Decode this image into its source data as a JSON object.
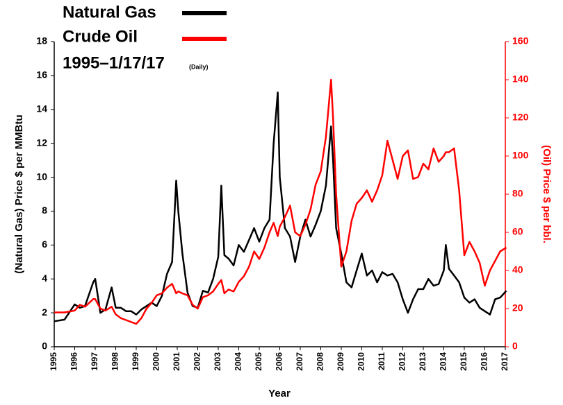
{
  "chart_data": {
    "type": "line",
    "subtitle": "1995–1/17/17",
    "subtitle_note": "(Daily)",
    "x_label": "Year",
    "y_label": "(Natural Gas) Price $ per MMBtu",
    "y2_label": "(Oil) Price $ per bbl.",
    "y2_color": "#ff0000",
    "legend": "upper left",
    "xlim": [
      1995,
      2017
    ],
    "xticks": [
      1995,
      1996,
      1997,
      1998,
      1999,
      2000,
      2001,
      2002,
      2003,
      2004,
      2005,
      2006,
      2007,
      2008,
      2009,
      2010,
      2011,
      2012,
      2013,
      2014,
      2015,
      2016,
      2017
    ],
    "ylim": [
      0,
      18
    ],
    "yticks": [
      0,
      2,
      4,
      6,
      8,
      10,
      12,
      14,
      16,
      18
    ],
    "y2lim": [
      0,
      160
    ],
    "y2ticks": [
      0,
      20,
      40,
      60,
      80,
      100,
      120,
      140,
      160
    ],
    "x": [
      1995.0,
      1995.5,
      1996.0,
      1996.25,
      1996.5,
      1996.9,
      1997.0,
      1997.25,
      1997.5,
      1997.8,
      1998.0,
      1998.25,
      1998.5,
      1998.75,
      1999.0,
      1999.25,
      1999.5,
      1999.75,
      2000.0,
      2000.25,
      2000.5,
      2000.75,
      2000.95,
      2001.05,
      2001.25,
      2001.5,
      2001.75,
      2002.0,
      2002.25,
      2002.5,
      2002.75,
      2003.0,
      2003.15,
      2003.3,
      2003.5,
      2003.75,
      2004.0,
      2004.25,
      2004.5,
      2004.75,
      2005.0,
      2005.25,
      2005.5,
      2005.7,
      2005.9,
      2006.0,
      2006.25,
      2006.5,
      2006.75,
      2007.0,
      2007.25,
      2007.5,
      2007.75,
      2008.0,
      2008.25,
      2008.5,
      2008.6,
      2008.75,
      2009.0,
      2009.25,
      2009.5,
      2009.75,
      2010.0,
      2010.25,
      2010.5,
      2010.75,
      2011.0,
      2011.25,
      2011.5,
      2011.75,
      2012.0,
      2012.25,
      2012.5,
      2012.75,
      2013.0,
      2013.25,
      2013.5,
      2013.75,
      2014.0,
      2014.1,
      2014.25,
      2014.5,
      2014.75,
      2015.0,
      2015.25,
      2015.5,
      2015.75,
      2016.0,
      2016.25,
      2016.5,
      2016.75,
      2017.05
    ],
    "series": [
      {
        "name": "Natural Gas",
        "color": "#000000",
        "values": [
          1.5,
          1.6,
          2.5,
          2.3,
          2.4,
          3.8,
          4.0,
          2.0,
          2.2,
          3.5,
          2.3,
          2.3,
          2.1,
          2.1,
          1.9,
          2.2,
          2.4,
          2.6,
          2.4,
          3.0,
          4.3,
          5.0,
          9.8,
          8.0,
          5.5,
          3.2,
          2.4,
          2.3,
          3.3,
          3.2,
          4.0,
          5.3,
          9.5,
          5.4,
          5.2,
          4.8,
          6.0,
          5.6,
          6.3,
          7.0,
          6.2,
          7.0,
          7.5,
          12.0,
          15.0,
          10.0,
          7.0,
          6.5,
          5.0,
          6.5,
          7.5,
          6.5,
          7.2,
          8.0,
          9.5,
          13.0,
          11.0,
          7.0,
          5.5,
          3.8,
          3.5,
          4.5,
          5.5,
          4.2,
          4.5,
          3.8,
          4.4,
          4.2,
          4.3,
          3.8,
          2.8,
          2.0,
          2.8,
          3.4,
          3.4,
          4.0,
          3.6,
          3.7,
          4.5,
          6.0,
          4.6,
          4.2,
          3.8,
          2.9,
          2.6,
          2.8,
          2.3,
          2.1,
          1.9,
          2.8,
          2.9,
          3.3
        ]
      },
      {
        "name": "Crude Oil",
        "color": "#ff0000",
        "axis": "y2",
        "values": [
          18,
          18,
          19,
          22,
          21,
          25,
          25,
          20,
          19,
          21,
          17,
          15,
          14,
          13,
          12,
          15,
          20,
          23,
          27,
          28,
          31,
          33,
          28,
          29,
          28,
          27,
          22,
          20,
          26,
          27,
          29,
          33,
          35,
          28,
          30,
          29,
          34,
          37,
          42,
          50,
          46,
          52,
          60,
          65,
          58,
          63,
          68,
          74,
          60,
          58,
          64,
          72,
          85,
          92,
          110,
          140,
          120,
          80,
          42,
          50,
          66,
          75,
          78,
          82,
          76,
          82,
          90,
          108,
          98,
          88,
          100,
          103,
          88,
          89,
          96,
          93,
          104,
          97,
          100,
          102,
          102,
          104,
          82,
          48,
          55,
          50,
          44,
          32,
          40,
          45,
          50,
          52
        ]
      }
    ]
  }
}
